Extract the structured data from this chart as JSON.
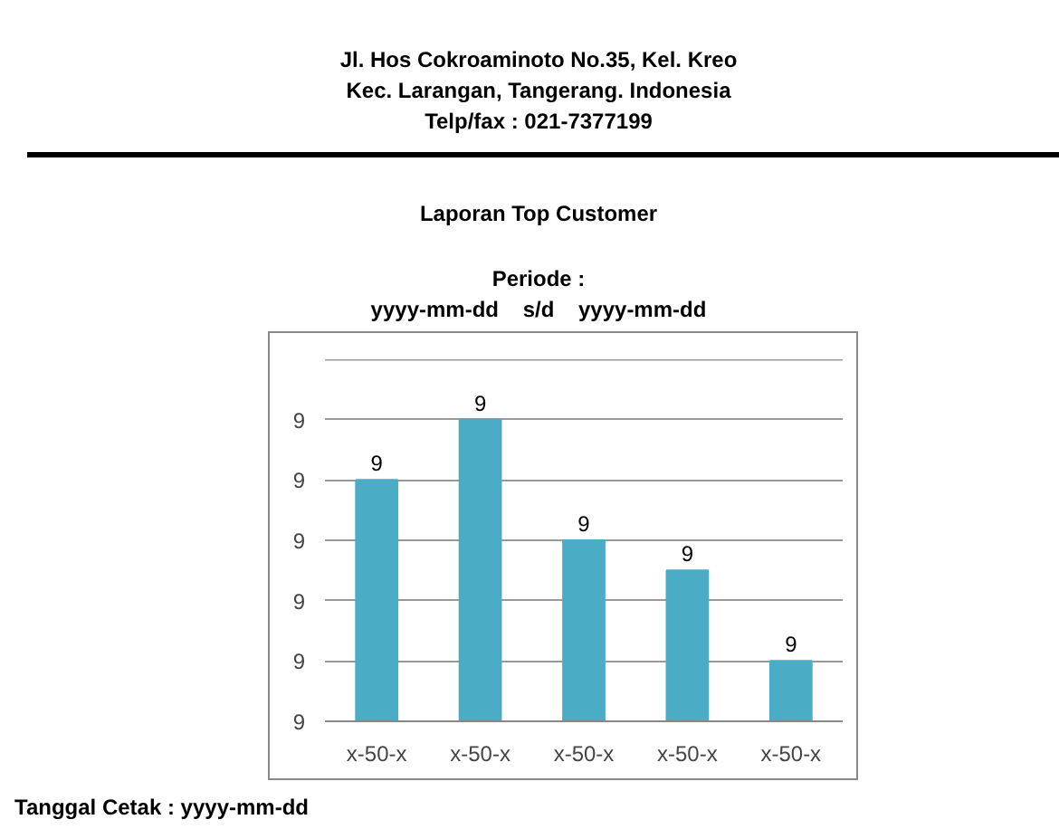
{
  "chart_data": {
    "type": "bar",
    "title": "Laporan Top Customer",
    "subtitle": "Periode :",
    "annotations": [
      "Jl. Hos Cokroaminoto No.35, Kel. Kreo",
      "Kec. Larangan, Tangerang. Indonesia",
      "Telp/fax : 021-7377199",
      "yyyy-mm-dd    s/d    yyyy-mm-dd",
      "Tanggal Cetak : yyyy-mm-dd"
    ],
    "categories": [
      "x-50-x",
      "x-50-x",
      "x-50-x",
      "x-50-x",
      "x-50-x"
    ],
    "values": [
      9.3,
      9.4,
      9.2,
      9.15,
      9.0
    ],
    "value_labels": [
      "9",
      "9",
      "9",
      "9",
      "9"
    ],
    "color": "#4bacc6",
    "ylim": [
      8.9,
      9.5
    ],
    "yticks": [
      {
        "value": 8.9,
        "label": "9"
      },
      {
        "value": 9.0,
        "label": "9"
      },
      {
        "value": 9.1,
        "label": "9"
      },
      {
        "value": 9.2,
        "label": "9"
      },
      {
        "value": 9.3,
        "label": "9"
      },
      {
        "value": 9.4,
        "label": "9"
      },
      {
        "value": 9.5,
        "label": null
      }
    ],
    "grid": "y"
  }
}
